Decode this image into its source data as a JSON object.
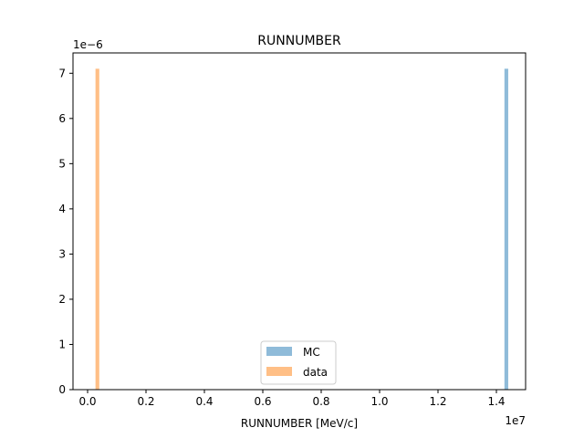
{
  "chart_data": {
    "type": "bar",
    "title": "RUNNUMBER",
    "xlabel": "RUNNUMBER [MeV/c]",
    "ylabel": "",
    "x_scale_label": "1e7",
    "y_scale_label": "1e−6",
    "x_scale": 10000000,
    "y_scale": 1e-06,
    "xlim": [
      -0.05,
      1.5
    ],
    "ylim": [
      0,
      7.45
    ],
    "x_ticks": [
      {
        "value": 0.0,
        "label": "0.0"
      },
      {
        "value": 0.2,
        "label": "0.2"
      },
      {
        "value": 0.4,
        "label": "0.4"
      },
      {
        "value": 0.6,
        "label": "0.6"
      },
      {
        "value": 0.8,
        "label": "0.8"
      },
      {
        "value": 1.0,
        "label": "1.0"
      },
      {
        "value": 1.2,
        "label": "1.2"
      },
      {
        "value": 1.4,
        "label": "1.4"
      }
    ],
    "y_ticks": [
      {
        "value": 0,
        "label": "0"
      },
      {
        "value": 1,
        "label": "1"
      },
      {
        "value": 2,
        "label": "2"
      },
      {
        "value": 3,
        "label": "3"
      },
      {
        "value": 4,
        "label": "4"
      },
      {
        "value": 5,
        "label": "5"
      },
      {
        "value": 6,
        "label": "6"
      },
      {
        "value": 7,
        "label": "7"
      }
    ],
    "series": [
      {
        "name": "MC",
        "color": "#1f77b4",
        "opacity": 0.5,
        "bars": [
          {
            "x0": 1.4275,
            "x1": 1.4405,
            "y": 7.1
          }
        ]
      },
      {
        "name": "data",
        "color": "#ff7f0e",
        "opacity": 0.5,
        "bars": [
          {
            "x0": 0.027,
            "x1": 0.04,
            "y": 7.1
          }
        ]
      }
    ],
    "legend_position": "lower center",
    "grid": false
  }
}
